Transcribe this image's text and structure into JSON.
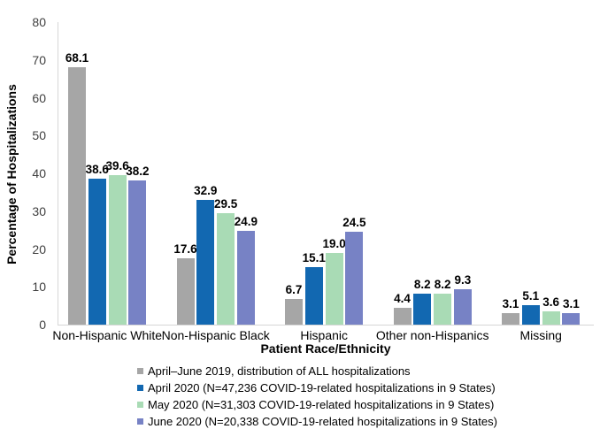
{
  "chart_data": {
    "type": "bar",
    "title": "",
    "xlabel": "Patient Race/Ethnicity",
    "ylabel": "Percentage of Hospitalizations",
    "ylim": [
      0,
      80
    ],
    "yticks": [
      0,
      10,
      20,
      30,
      40,
      50,
      60,
      70,
      80
    ],
    "grid": false,
    "legend_position": "bottom",
    "value_labels_decimals": 1,
    "categories": [
      "Non-Hispanic White",
      "Non-Hispanic Black",
      "Hispanic",
      "Other non-Hispanics",
      "Missing"
    ],
    "series": [
      {
        "name": "April–June 2019, distribution of ALL hospitalizations",
        "color": "#A6A6A6",
        "values": [
          68.1,
          17.6,
          6.7,
          4.4,
          3.1
        ]
      },
      {
        "name": "April 2020 (N=47,236 COVID-19-related hospitalizations in 9 States)",
        "color": "#1268B1",
        "values": [
          38.6,
          32.9,
          15.1,
          8.2,
          5.1
        ]
      },
      {
        "name": "May 2020 (N=31,303 COVID-19-related hospitalizations in 9 States)",
        "color": "#A9DBB5",
        "values": [
          39.6,
          29.5,
          19.0,
          8.2,
          3.6
        ]
      },
      {
        "name": "June 2020 (N=20,338 COVID-19-related hospitalizations in 9 States)",
        "color": "#7782C5",
        "values": [
          38.2,
          24.9,
          24.5,
          9.3,
          3.1
        ]
      }
    ]
  }
}
